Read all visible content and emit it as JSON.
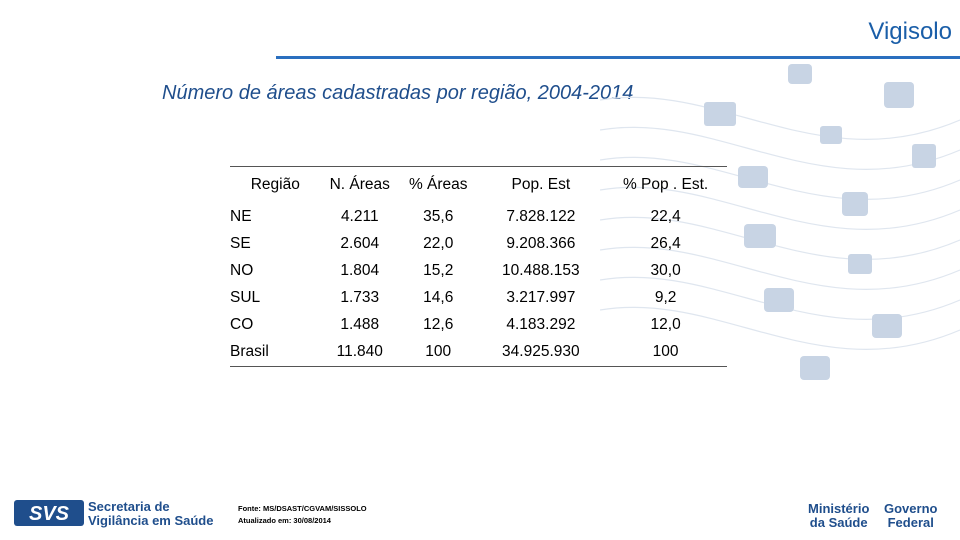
{
  "header": {
    "brand": "Vigisolo"
  },
  "title": "Número de áreas cadastradas por região, 2004-2014",
  "table": {
    "columns": [
      "Região",
      "N. Áreas",
      "% Áreas",
      "Pop. Est",
      "% Pop . Est."
    ],
    "rows": [
      [
        "NE",
        "4.211",
        "35,6",
        "7.828.122",
        "22,4"
      ],
      [
        "SE",
        "2.604",
        "22,0",
        "9.208.366",
        "26,4"
      ],
      [
        "NO",
        "1.804",
        "15,2",
        "10.488.153",
        "30,0"
      ],
      [
        "SUL",
        "1.733",
        "14,6",
        "3.217.997",
        "9,2"
      ],
      [
        "CO",
        "1.488",
        "12,6",
        "4.183.292",
        "12,0"
      ],
      [
        "Brasil",
        "11.840",
        "100",
        "34.925.930",
        "100"
      ]
    ]
  },
  "footer": {
    "source": "Fonte: MS/DSAST/CGVAM/SISSOLO",
    "updated": "Atualizado em: 30/08/2014",
    "svs_line1": "Secretaria de",
    "svs_line2": "Vigilância em Saúde",
    "svs_logo_text": "SVS",
    "ministry_line1": "Ministério",
    "ministry_line2": "da Saúde",
    "gov_line1": "Governo",
    "gov_line2": "Federal"
  },
  "colors": {
    "brand": "#1a5ea8",
    "title": "#1f4e8c",
    "deco": "#c8d4e4"
  }
}
